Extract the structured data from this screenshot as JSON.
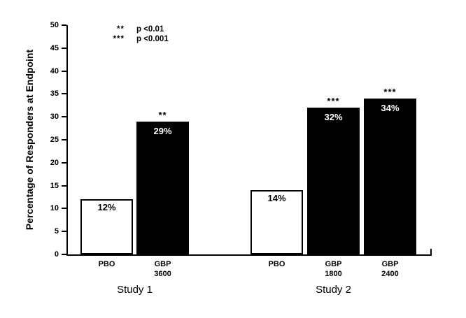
{
  "chart_data": {
    "type": "bar",
    "title": "",
    "ylabel": "Percentage of Responders at Endpoint",
    "xlabel": "",
    "ylim": [
      0,
      50
    ],
    "yticks": [
      0,
      5,
      10,
      15,
      20,
      25,
      30,
      35,
      40,
      45,
      50
    ],
    "grid": false,
    "legend_position": "top-left-inside",
    "colors": {
      "pbo_bar": "#ffffff",
      "gbp_bar": "#000000",
      "axis": "#000000",
      "background": "#ffffff"
    },
    "legend": [
      {
        "symbol": "**",
        "text": "p <0.01"
      },
      {
        "symbol": "***",
        "text": "p <0.001"
      }
    ],
    "groups": [
      {
        "label": "Study 1",
        "bars": [
          {
            "category": "PBO",
            "dose": "",
            "value": 12,
            "value_label": "12%",
            "significance": "",
            "fill": "#ffffff"
          },
          {
            "category": "GBP",
            "dose": "3600",
            "value": 29,
            "value_label": "29%",
            "significance": "**",
            "fill": "#000000"
          }
        ]
      },
      {
        "label": "Study 2",
        "bars": [
          {
            "category": "PBO",
            "dose": "",
            "value": 14,
            "value_label": "14%",
            "significance": "",
            "fill": "#ffffff"
          },
          {
            "category": "GBP",
            "dose": "1800",
            "value": 32,
            "value_label": "32%",
            "significance": "***",
            "fill": "#000000"
          },
          {
            "category": "GBP",
            "dose": "2400",
            "value": 34,
            "value_label": "34%",
            "significance": "***",
            "fill": "#000000"
          }
        ]
      }
    ]
  }
}
